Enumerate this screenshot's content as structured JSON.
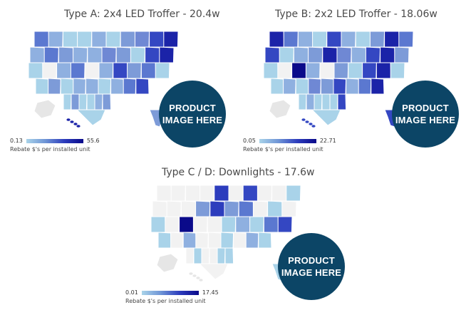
{
  "panels": [
    {
      "title": "Type A: 2x4 LED Troffer - 20.4w",
      "badge": [
        "PRODUCT",
        "IMAGE HERE"
      ],
      "legend": {
        "min": "0.13",
        "max": "55.6",
        "caption": "Rebate $'s per installed unit"
      },
      "cells": [
        [
          "#5b78d0",
          "#8fb0e0",
          "#a9d3e9",
          "#a9d3e9",
          "#8fb0e0",
          "#a9d3e9",
          "#7d9bd8",
          "#6f88d4",
          "#3447c2",
          "#1b23a8"
        ],
        [
          "#8fb0e0",
          "#5b78d0",
          "#7d9bd8",
          "#8fb0e0",
          "#8fb0e0",
          "#6f88d4",
          "#7d9bd8",
          "#a9d3e9",
          "#3447c2",
          "#1b23a8"
        ],
        [
          "#a9d3e9",
          "#f2f2f2",
          "#8fb0e0",
          "#5b78d0",
          "#f2f2f2",
          "#8fb0e0",
          "#3447c2",
          "#7d9bd8",
          "#5b78d0",
          "#a9d3e9"
        ],
        [
          "#a9d3e9",
          "#7d9bd8",
          "#a9d3e9",
          "#8fb0e0",
          "#8fb0e0",
          "#a9d3e9",
          "#8fb0e0",
          "#5b78d0",
          "#3447c2",
          "#ffffff"
        ],
        [
          "#ffffff",
          "#a9d3e9",
          "#7d9bd8",
          "#a9d3e9",
          "#a9d3e9",
          "#8fb0e0",
          "#7d9bd8",
          "#ffffff",
          "#ffffff",
          "#ffffff"
        ]
      ]
    },
    {
      "title": "Type B: 2x2 LED Troffer - 18.06w",
      "badge": [
        "PRODUCT",
        "IMAGE HERE"
      ],
      "legend": {
        "min": "0.05",
        "max": "22.71",
        "caption": "Rebate $'s per installed unit"
      },
      "cells": [
        [
          "#1b23a8",
          "#5b78d0",
          "#8fb0e0",
          "#a9d3e9",
          "#3447c2",
          "#8fb0e0",
          "#a9d3e9",
          "#7d9bd8",
          "#1b23a8",
          "#5b78d0"
        ],
        [
          "#3447c2",
          "#a9d3e9",
          "#8fb0e0",
          "#7d9bd8",
          "#1b23a8",
          "#6f88d4",
          "#8fb0e0",
          "#3447c2",
          "#1b23a8",
          "#7d9bd8"
        ],
        [
          "#a9d3e9",
          "#f2f2f2",
          "#0a0a8a",
          "#8fb0e0",
          "#f2f2f2",
          "#7d9bd8",
          "#a9d3e9",
          "#3447c2",
          "#1b23a8",
          "#a9d3e9"
        ],
        [
          "#a9d3e9",
          "#8fb0e0",
          "#a9d3e9",
          "#6f88d4",
          "#7d9bd8",
          "#3447c2",
          "#8fb0e0",
          "#5b78d0",
          "#1b23a8",
          "#ffffff"
        ],
        [
          "#ffffff",
          "#a9d3e9",
          "#8fb0e0",
          "#a9d3e9",
          "#a9d3e9",
          "#a9d3e9",
          "#3447c2",
          "#ffffff",
          "#ffffff",
          "#ffffff"
        ]
      ]
    },
    {
      "title": "Type C / D: Downlights - 17.6w",
      "badge": [
        "PRODUCT",
        "IMAGE HERE"
      ],
      "legend": {
        "min": "0.01",
        "max": "17.45",
        "caption": "Rebate $'s per installed unit"
      },
      "cells": [
        [
          "#f2f2f2",
          "#f2f2f2",
          "#f2f2f2",
          "#f2f2f2",
          "#2d3dbd",
          "#f2f2f2",
          "#3447c2",
          "#f2f2f2",
          "#f2f2f2",
          "#a9d3e9"
        ],
        [
          "#f2f2f2",
          "#f2f2f2",
          "#f2f2f2",
          "#7d9bd8",
          "#2d3dbd",
          "#7d9bd8",
          "#5b78d0",
          "#f2f2f2",
          "#a9d3e9",
          "#f2f2f2"
        ],
        [
          "#a9d3e9",
          "#f2f2f2",
          "#0a0a8a",
          "#f2f2f2",
          "#f2f2f2",
          "#a9d3e9",
          "#8fb0e0",
          "#a9d3e9",
          "#5b78d0",
          "#3447c2"
        ],
        [
          "#a9d3e9",
          "#f2f2f2",
          "#8fb0e0",
          "#f2f2f2",
          "#f2f2f2",
          "#a9d3e9",
          "#f2f2f2",
          "#8fb0e0",
          "#a9d3e9",
          "#ffffff"
        ],
        [
          "#ffffff",
          "#f2f2f2",
          "#a9d3e9",
          "#f2f2f2",
          "#f2f2f2",
          "#a9d3e9",
          "#a9d3e9",
          "#ffffff",
          "#ffffff",
          "#ffffff"
        ]
      ]
    }
  ]
}
